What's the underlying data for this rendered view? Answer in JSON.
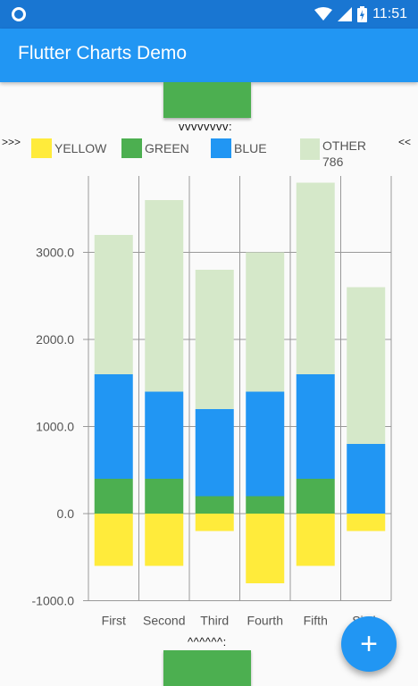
{
  "status_bar": {
    "time": "11:51"
  },
  "app_bar": {
    "title": "Flutter Charts Demo"
  },
  "top_hint": "vvvvvvvv:",
  "bottom_hint": "^^^^^^:",
  "fab": {
    "icon": "add-icon",
    "label": "+"
  },
  "colors": {
    "yellow": "#ffeb3b",
    "green": "#4caf50",
    "blue": "#2196f3",
    "other": "#d5e8c9",
    "appbar": "#2196f3",
    "statusbar": "#1976d2"
  },
  "chart_data": {
    "type": "bar",
    "stacked": true,
    "legend_prefix": ">>>",
    "legend_suffix": "<<",
    "categories": [
      "First",
      "Second",
      "Third",
      "Fourth",
      "Fifth",
      "Sixth"
    ],
    "series": [
      {
        "name": "YELLOW",
        "color": "#ffeb3b",
        "values": [
          -600,
          -600,
          -200,
          -800,
          -600,
          -200
        ]
      },
      {
        "name": "GREEN",
        "color": "#4caf50",
        "values": [
          400,
          400,
          200,
          200,
          400,
          0
        ]
      },
      {
        "name": "BLUE",
        "color": "#2196f3",
        "values": [
          1200,
          1000,
          1000,
          1200,
          1200,
          800
        ]
      },
      {
        "name": "OTHER 786",
        "color": "#d5e8c9",
        "values": [
          1600,
          2200,
          1600,
          1600,
          2200,
          1800
        ]
      }
    ],
    "y_ticks": [
      "-1000.0",
      "0.0",
      "1000.0",
      "2000.0",
      "3000.0"
    ],
    "y_tick_values": [
      -1000,
      0,
      1000,
      2000,
      3000
    ],
    "ylim": [
      -1000,
      3900
    ],
    "grid": true,
    "legend_position": "top"
  }
}
